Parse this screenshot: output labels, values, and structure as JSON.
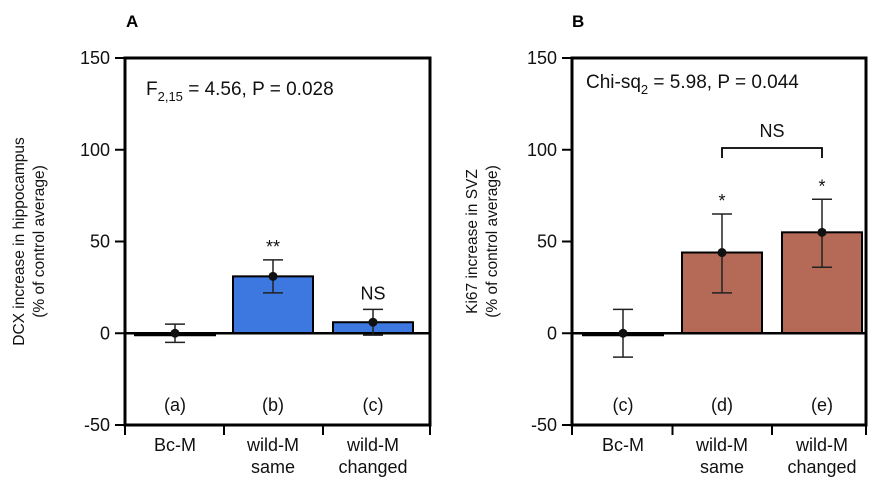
{
  "chart_data": [
    {
      "panel_label": "A",
      "type": "bar",
      "ylabel_line1": "DCX increase in hippocampus",
      "ylabel_line2": "(% of control average)",
      "stat": {
        "main": "F",
        "sub": "2,15",
        "rest": " = 4.56, P = 0.028"
      },
      "ylim": [
        -50,
        150
      ],
      "yticks": [
        "150",
        "100",
        "50",
        "0",
        "-50"
      ],
      "categories": [
        [
          "Bc-M"
        ],
        [
          "wild-M",
          "same"
        ],
        [
          "wild-M",
          "changed"
        ]
      ],
      "values": [
        0,
        31,
        6
      ],
      "err_low": [
        -5,
        22,
        -1
      ],
      "err_high": [
        5,
        40,
        13
      ],
      "bar_notes": [
        "(a)",
        "(b)",
        "(c)"
      ],
      "significance": [
        "",
        "**",
        "NS"
      ],
      "bar_color": "#3d78e0"
    },
    {
      "panel_label": "B",
      "type": "bar",
      "ylabel_line1": "Ki67 increase in SVZ",
      "ylabel_line2": "(% of control average)",
      "stat": {
        "main": "Chi-sq",
        "sub": "2",
        "rest": " = 5.98, P = 0.044"
      },
      "ylim": [
        -50,
        150
      ],
      "yticks": [
        "150",
        "100",
        "50",
        "0",
        "-50"
      ],
      "categories": [
        [
          "Bc-M"
        ],
        [
          "wild-M",
          "same"
        ],
        [
          "wild-M",
          "changed"
        ]
      ],
      "values": [
        0,
        44,
        55
      ],
      "err_low": [
        -13,
        22,
        36
      ],
      "err_high": [
        13,
        65,
        73
      ],
      "bar_notes": [
        "(c)",
        "(d)",
        "(e)"
      ],
      "significance": [
        "",
        "*",
        "*"
      ],
      "bracket_label": "NS",
      "bar_color": "#b56a57"
    }
  ]
}
